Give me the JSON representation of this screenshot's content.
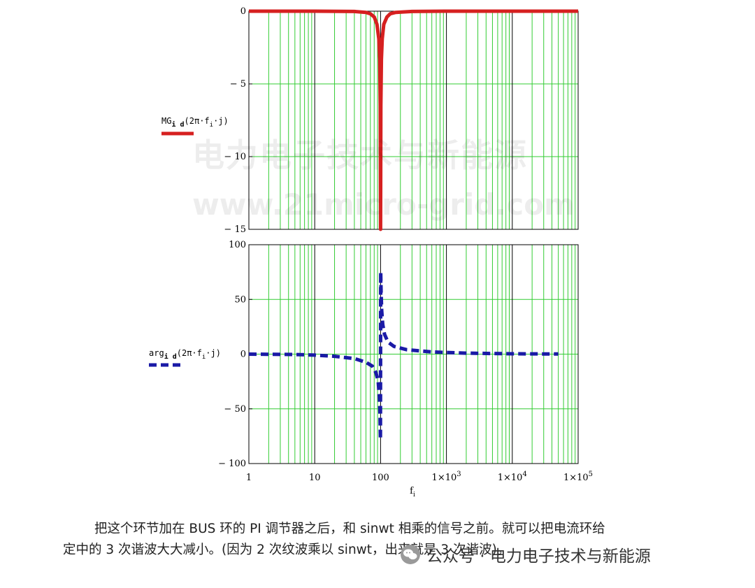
{
  "watermarks": {
    "cn": "电力电子技术与新能源",
    "url": "www.21micro-grid.com"
  },
  "caption": {
    "line1": "把这个环节加在 BUS 环的 PI 调节器之后，和 sinwt 相乘的信号之前。就可以把电流环给",
    "line2": "定中的 3 次谐波大大减小。(因为 2 次纹波乘以 sinwt，出来就是 3 次谐波)。"
  },
  "wechat": {
    "label": "公众号 · 电力电子技术与新能源",
    "icon": "wechat-icon"
  },
  "chart_data": [
    {
      "type": "line",
      "name": "magnitude-plot",
      "legend": {
        "name": "MG",
        "sub": "i d",
        "arg": "(2π·f",
        "argsub": "i",
        "tail": "·j)"
      },
      "series_color": "#d62020",
      "grid_color": "#33cc33",
      "major_grid_color": "#000000",
      "xscale": "log",
      "xlim": [
        1,
        100000
      ],
      "ylim": [
        -15,
        0
      ],
      "yticks": [
        {
          "value": 0,
          "label": "0"
        },
        {
          "value": -5,
          "label": "-5"
        },
        {
          "value": -10,
          "label": "-10"
        },
        {
          "value": -15,
          "label": "-15"
        }
      ],
      "x": [
        1,
        10,
        40,
        60,
        70,
        80,
        88,
        94,
        97,
        99,
        100,
        101,
        103,
        106,
        112,
        125,
        140,
        170,
        300,
        1000,
        10000,
        100000
      ],
      "y": [
        0,
        0,
        -0.02,
        -0.08,
        -0.18,
        -0.4,
        -0.9,
        -1.9,
        -3.3,
        -6.5,
        -15,
        -6.5,
        -3.3,
        -1.9,
        -0.9,
        -0.4,
        -0.18,
        -0.08,
        -0.02,
        0,
        0,
        0
      ]
    },
    {
      "type": "line",
      "name": "phase-plot",
      "legend": {
        "name": "arg",
        "sub": "i d",
        "arg": "(2π·f",
        "argsub": "i",
        "tail": "·j)"
      },
      "series_color": "#1a1aa6",
      "grid_color": "#33cc33",
      "major_grid_color": "#000000",
      "xscale": "log",
      "xlim": [
        1,
        100000
      ],
      "ylim": [
        -100,
        100
      ],
      "yticks": [
        {
          "value": 100,
          "label": "100"
        },
        {
          "value": 50,
          "label": "50"
        },
        {
          "value": 0,
          "label": "0"
        },
        {
          "value": -50,
          "label": "-50"
        },
        {
          "value": -100,
          "label": "-100"
        }
      ],
      "xticks": [
        {
          "value": 1,
          "label": "1",
          "exp": ""
        },
        {
          "value": 10,
          "label": "10",
          "exp": ""
        },
        {
          "value": 100,
          "label": "100",
          "exp": ""
        },
        {
          "value": 1000,
          "label": "1×10",
          "exp": "3"
        },
        {
          "value": 10000,
          "label": "1×10",
          "exp": "4"
        },
        {
          "value": 100000,
          "label": "1×10",
          "exp": "5"
        }
      ],
      "xlabel": {
        "base": "f",
        "sub": "i"
      },
      "x": [
        1,
        5,
        10,
        20,
        40,
        60,
        75,
        85,
        92,
        96,
        98,
        99.5,
        100.5,
        102,
        104,
        108,
        115,
        130,
        160,
        250,
        600,
        2000,
        10000,
        50000
      ],
      "y": [
        0,
        -0.3,
        -0.9,
        -2,
        -4,
        -7.5,
        -11,
        -17,
        -25,
        -40,
        -55,
        -78,
        75,
        55,
        40,
        27,
        18,
        11,
        7,
        4,
        2,
        0.9,
        0.3,
        0.1
      ]
    }
  ]
}
